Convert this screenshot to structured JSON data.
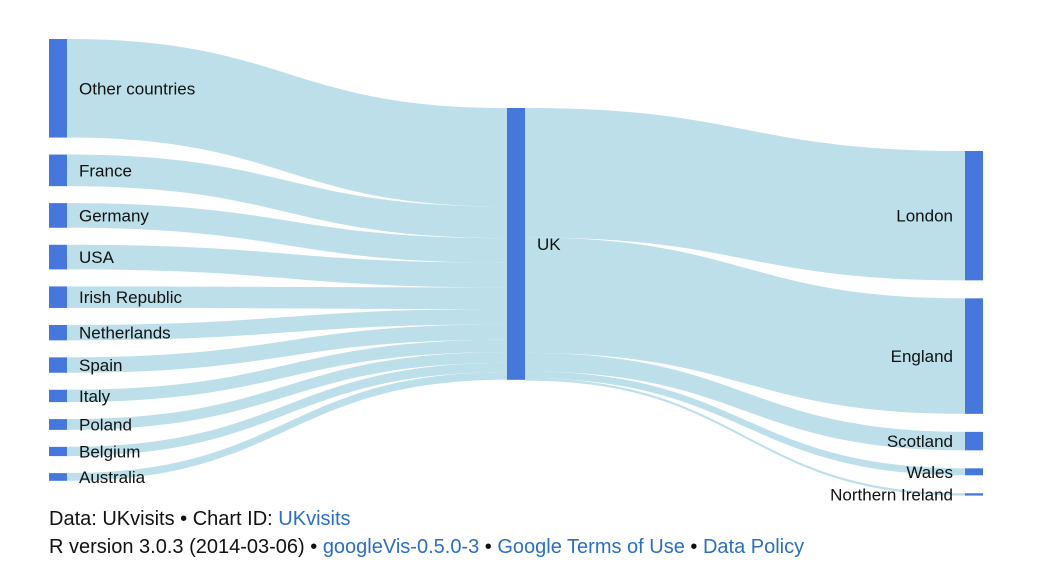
{
  "chart_data": {
    "type": "sankey",
    "colors": {
      "node": "#4577dd",
      "link": "#bcdfea"
    },
    "sources": [
      {
        "name": "Other countries",
        "value": 12.8
      },
      {
        "name": "France",
        "value": 4.1
      },
      {
        "name": "Germany",
        "value": 3.2
      },
      {
        "name": "USA",
        "value": 3.2
      },
      {
        "name": "Irish Republic",
        "value": 2.8
      },
      {
        "name": "Netherlands",
        "value": 2.0
      },
      {
        "name": "Spain",
        "value": 2.0
      },
      {
        "name": "Italy",
        "value": 1.6
      },
      {
        "name": "Poland",
        "value": 1.4
      },
      {
        "name": "Belgium",
        "value": 1.2
      },
      {
        "name": "Australia",
        "value": 1.0
      }
    ],
    "hub": {
      "name": "UK",
      "value": 35.3
    },
    "destinations": [
      {
        "name": "London",
        "value": 16.8
      },
      {
        "name": "England",
        "value": 15.0
      },
      {
        "name": "Scotland",
        "value": 2.4
      },
      {
        "name": "Wales",
        "value": 0.9
      },
      {
        "name": "Northern Ireland",
        "value": 0.3
      }
    ]
  },
  "footer": {
    "line1_prefix": "Data: UKvisits • Chart ID: ",
    "chart_id_link": "UKvisits",
    "line2_prefix": "R version 3.0.3 (2014-03-06) • ",
    "googlevis_link": "googleVis-0.5.0-3",
    "sep1": " • ",
    "terms_link": "Google Terms of Use",
    "sep2": " • ",
    "policy_link": "Data Policy"
  }
}
